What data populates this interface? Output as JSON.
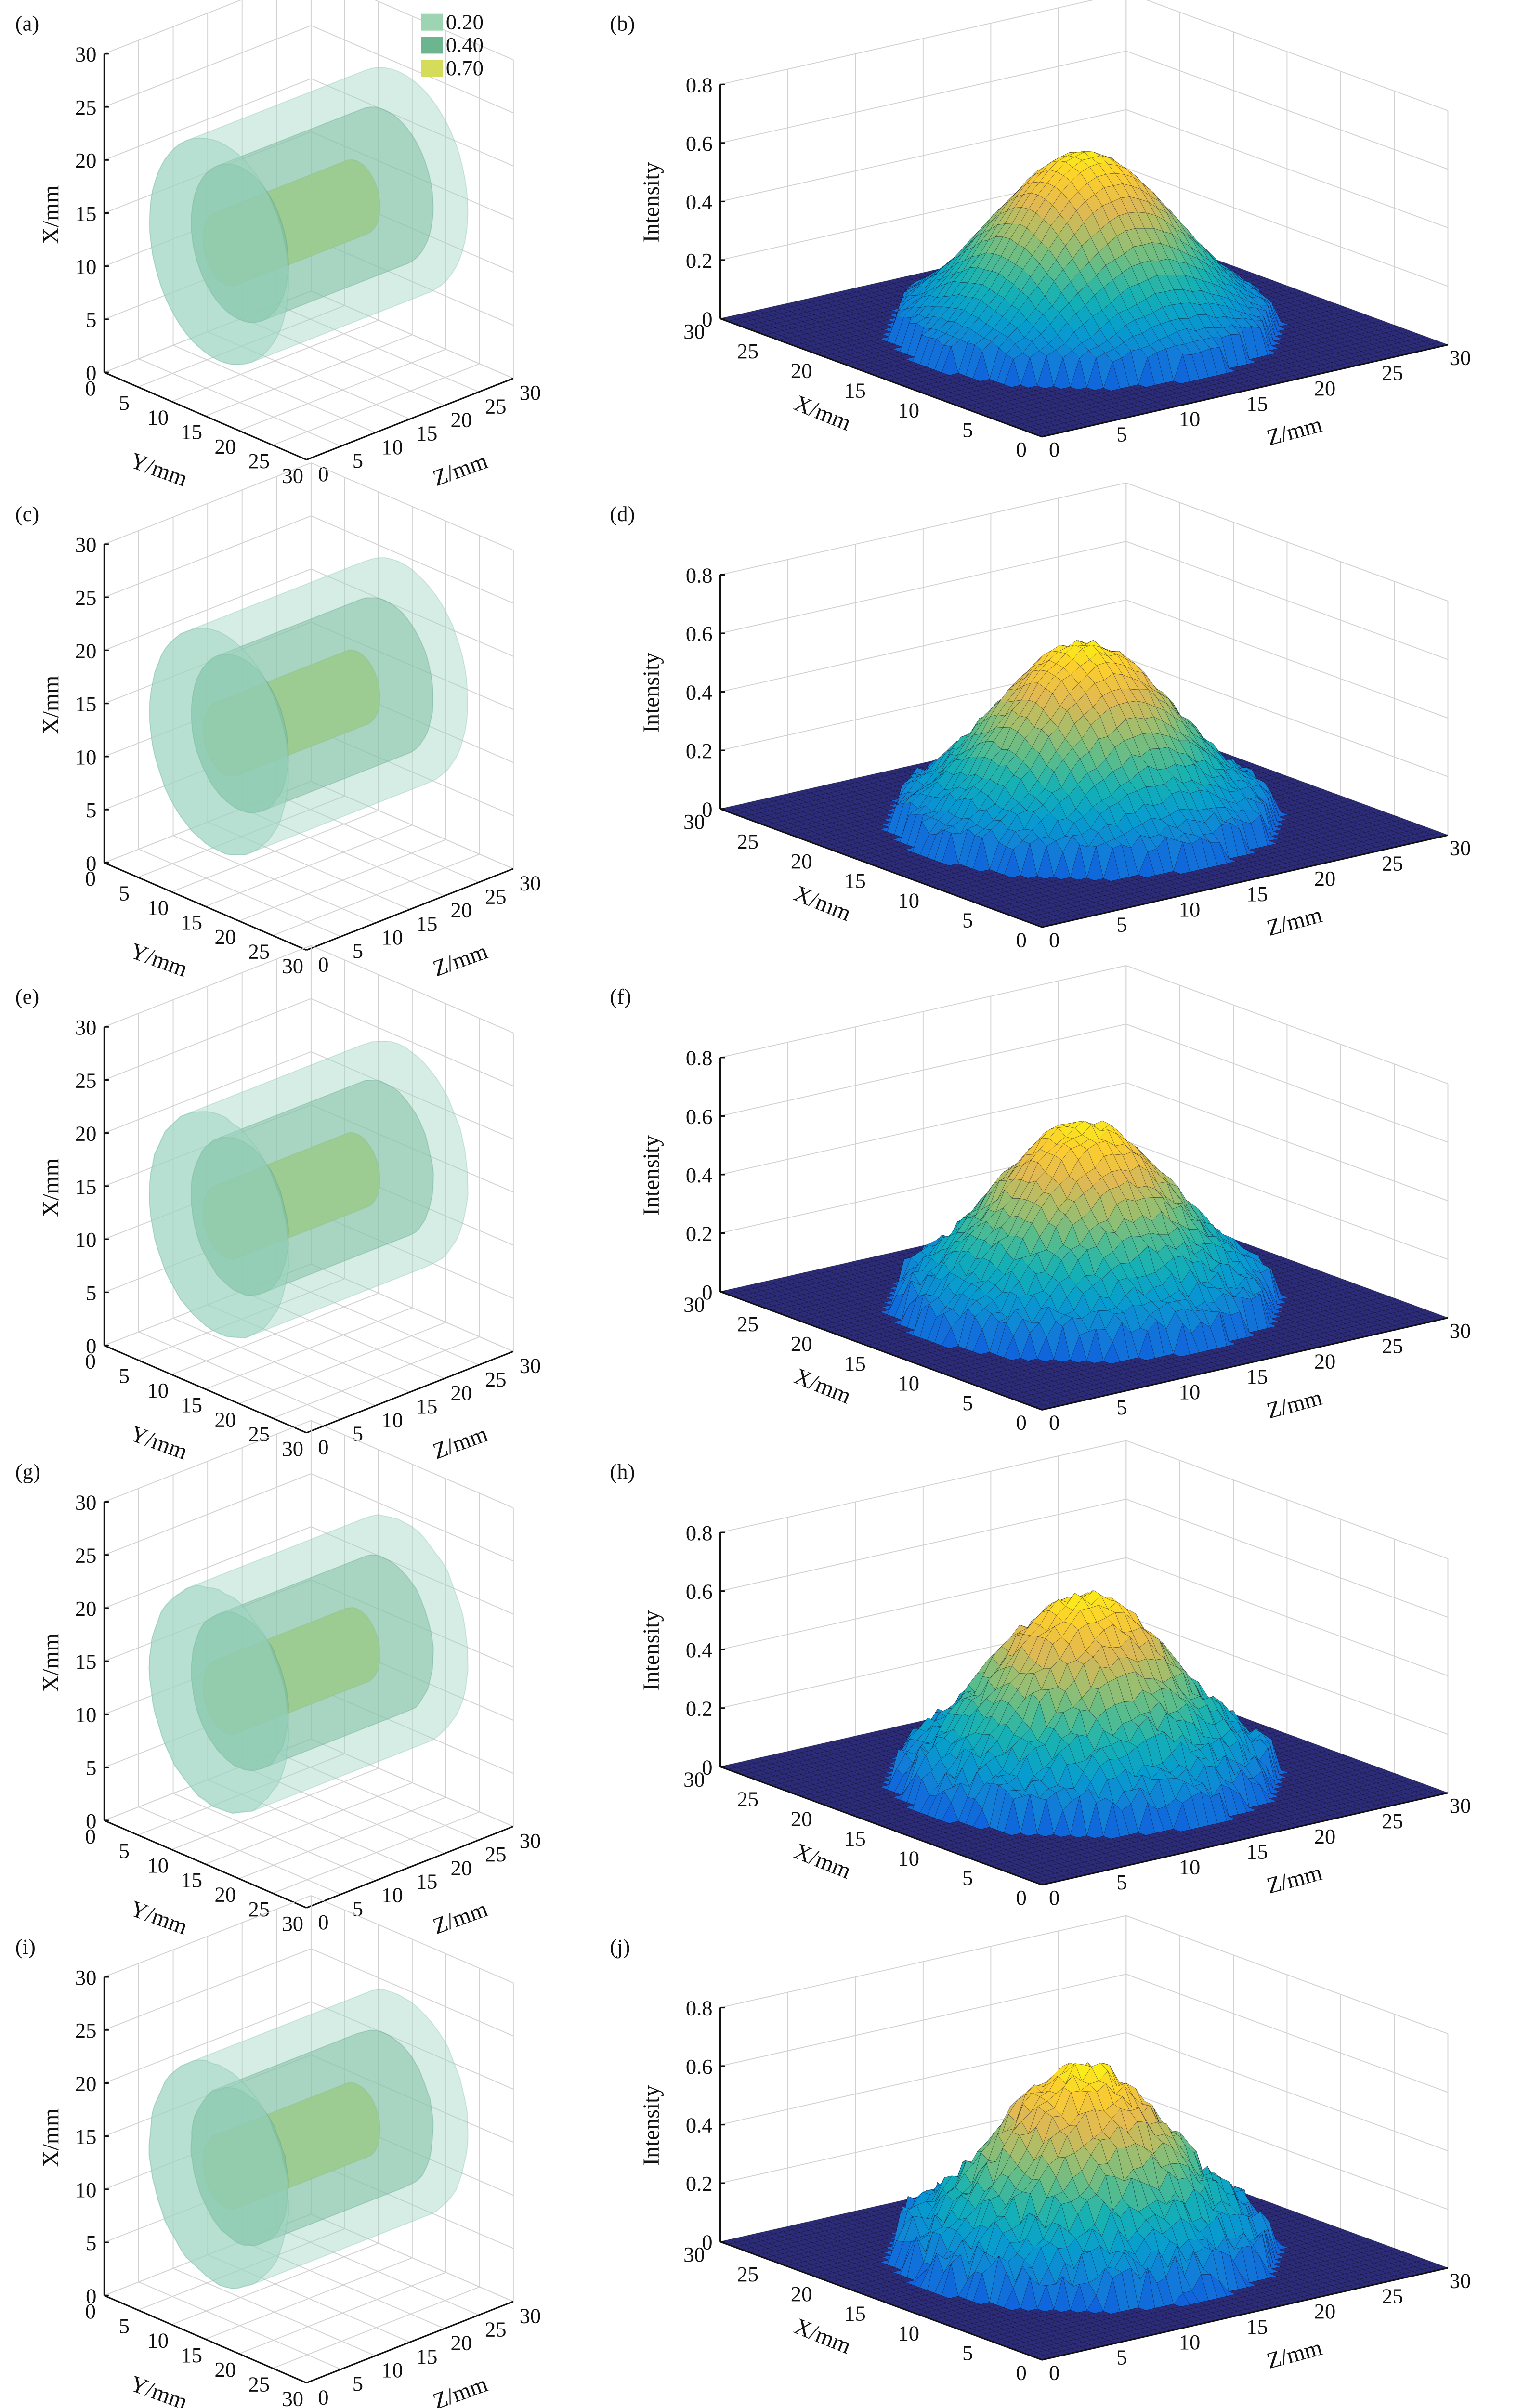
{
  "colors": {
    "iso_020": "#9dd5c0",
    "iso_040": "#5fae88",
    "iso_070": "#d6dc4c",
    "legend_020": "#9dd5b2",
    "legend_040": "#6db58f",
    "legend_070": "#d4dc5a"
  },
  "chart_data": [
    {
      "panel_label": "(a)",
      "type": "isosurface",
      "xlabel": "X/mm",
      "ylabel": "Y/mm",
      "zlabel": "Z/mm",
      "x_range": [
        0,
        30
      ],
      "y_range": [
        0,
        30
      ],
      "z_range": [
        0,
        30
      ],
      "xticks": [
        "0",
        "5",
        "10",
        "15",
        "20",
        "25",
        "30"
      ],
      "yticks": [
        "0",
        "5",
        "10",
        "15",
        "20",
        "25",
        "30"
      ],
      "zticks": [
        "0",
        "5",
        "10",
        "15",
        "20",
        "25",
        "30"
      ],
      "isovalues": [
        0.2,
        0.4,
        0.7
      ],
      "legend": [
        {
          "label": "0.20"
        },
        {
          "label": "0.40"
        },
        {
          "label": "0.70"
        }
      ],
      "roughness": 0.1
    },
    {
      "panel_label": "(b)",
      "type": "surface",
      "xlabel": "X/mm",
      "zlabel": "Z/mm",
      "vlabel": "Intensity",
      "xticks": [
        "0",
        "5",
        "10",
        "15",
        "20",
        "25",
        "30"
      ],
      "zticks": [
        "0",
        "5",
        "10",
        "15",
        "20",
        "25",
        "30"
      ],
      "vticks": [
        "0",
        "0.2",
        "0.4",
        "0.6",
        "0.8"
      ],
      "x_range": [
        0,
        30
      ],
      "z_range": [
        0,
        30
      ],
      "v_range": [
        0,
        0.8
      ],
      "peak_intensity": 0.61,
      "beam_radius_mm": 11,
      "noise": 0.01
    },
    {
      "panel_label": "(c)",
      "type": "isosurface",
      "xlabel": "X/mm",
      "ylabel": "Y/mm",
      "zlabel": "Z/mm",
      "x_range": [
        0,
        30
      ],
      "y_range": [
        0,
        30
      ],
      "z_range": [
        0,
        30
      ],
      "xticks": [
        "0",
        "5",
        "10",
        "15",
        "20",
        "25",
        "30"
      ],
      "yticks": [
        "0",
        "5",
        "10",
        "15",
        "20",
        "25",
        "30"
      ],
      "zticks": [
        "0",
        "5",
        "10",
        "15",
        "20",
        "25",
        "30"
      ],
      "isovalues": [
        0.2,
        0.4,
        0.7
      ],
      "roughness": 0.25
    },
    {
      "panel_label": "(d)",
      "type": "surface",
      "xlabel": "X/mm",
      "zlabel": "Z/mm",
      "vlabel": "Intensity",
      "xticks": [
        "0",
        "5",
        "10",
        "15",
        "20",
        "25",
        "30"
      ],
      "zticks": [
        "0",
        "5",
        "10",
        "15",
        "20",
        "25",
        "30"
      ],
      "vticks": [
        "0",
        "0.2",
        "0.4",
        "0.6",
        "0.8"
      ],
      "x_range": [
        0,
        30
      ],
      "z_range": [
        0,
        30
      ],
      "v_range": [
        0,
        0.8
      ],
      "peak_intensity": 0.61,
      "beam_radius_mm": 11,
      "noise": 0.025
    },
    {
      "panel_label": "(e)",
      "type": "isosurface",
      "xlabel": "X/mm",
      "ylabel": "Y/mm",
      "zlabel": "Z/mm",
      "x_range": [
        0,
        30
      ],
      "y_range": [
        0,
        30
      ],
      "z_range": [
        0,
        30
      ],
      "xticks": [
        "0",
        "5",
        "10",
        "15",
        "20",
        "25",
        "30"
      ],
      "yticks": [
        "0",
        "5",
        "10",
        "15",
        "20",
        "25",
        "30"
      ],
      "zticks": [
        "0",
        "5",
        "10",
        "15",
        "20",
        "25",
        "30"
      ],
      "isovalues": [
        0.2,
        0.4,
        0.7
      ],
      "roughness": 0.4
    },
    {
      "panel_label": "(f)",
      "type": "surface",
      "xlabel": "X/mm",
      "zlabel": "Z/mm",
      "vlabel": "Intensity",
      "xticks": [
        "0",
        "5",
        "10",
        "15",
        "20",
        "25",
        "30"
      ],
      "zticks": [
        "0",
        "5",
        "10",
        "15",
        "20",
        "25",
        "30"
      ],
      "vticks": [
        "0",
        "0.2",
        "0.4",
        "0.6",
        "0.8"
      ],
      "x_range": [
        0,
        30
      ],
      "z_range": [
        0,
        30
      ],
      "v_range": [
        0,
        0.8
      ],
      "peak_intensity": 0.62,
      "beam_radius_mm": 11,
      "noise": 0.04
    },
    {
      "panel_label": "(g)",
      "type": "isosurface",
      "xlabel": "X/mm",
      "ylabel": "Y/mm",
      "zlabel": "Z/mm",
      "x_range": [
        0,
        30
      ],
      "y_range": [
        0,
        30
      ],
      "z_range": [
        0,
        30
      ],
      "xticks": [
        "0",
        "5",
        "10",
        "15",
        "20",
        "25",
        "30"
      ],
      "yticks": [
        "0",
        "5",
        "10",
        "15",
        "20",
        "25",
        "30"
      ],
      "zticks": [
        "0",
        "5",
        "10",
        "15",
        "20",
        "25",
        "30"
      ],
      "isovalues": [
        0.2,
        0.4,
        0.7
      ],
      "roughness": 0.55
    },
    {
      "panel_label": "(h)",
      "type": "surface",
      "xlabel": "X/mm",
      "zlabel": "Z/mm",
      "vlabel": "Intensity",
      "xticks": [
        "0",
        "5",
        "10",
        "15",
        "20",
        "25",
        "30"
      ],
      "zticks": [
        "0",
        "5",
        "10",
        "15",
        "20",
        "25",
        "30"
      ],
      "vticks": [
        "0",
        "0.2",
        "0.4",
        "0.6",
        "0.8"
      ],
      "x_range": [
        0,
        30
      ],
      "z_range": [
        0,
        30
      ],
      "v_range": [
        0,
        0.8
      ],
      "peak_intensity": 0.63,
      "beam_radius_mm": 11,
      "noise": 0.055
    },
    {
      "panel_label": "(i)",
      "type": "isosurface",
      "xlabel": "X/mm",
      "ylabel": "Y/mm",
      "zlabel": "Z/mm",
      "x_range": [
        0,
        30
      ],
      "y_range": [
        0,
        30
      ],
      "z_range": [
        0,
        30
      ],
      "xticks": [
        "0",
        "5",
        "10",
        "15",
        "20",
        "25",
        "30"
      ],
      "yticks": [
        "0",
        "5",
        "10",
        "15",
        "20",
        "25",
        "30"
      ],
      "zticks": [
        "0",
        "5",
        "10",
        "15",
        "20",
        "25",
        "30"
      ],
      "isovalues": [
        0.2,
        0.4,
        0.7
      ],
      "roughness": 0.7
    },
    {
      "panel_label": "(j)",
      "type": "surface",
      "xlabel": "X/mm",
      "zlabel": "Z/mm",
      "vlabel": "Intensity",
      "xticks": [
        "0",
        "5",
        "10",
        "15",
        "20",
        "25",
        "30"
      ],
      "zticks": [
        "0",
        "5",
        "10",
        "15",
        "20",
        "25",
        "30"
      ],
      "vticks": [
        "0",
        "0.2",
        "0.4",
        "0.6",
        "0.8"
      ],
      "x_range": [
        0,
        30
      ],
      "z_range": [
        0,
        30
      ],
      "v_range": [
        0,
        0.8
      ],
      "peak_intensity": 0.64,
      "beam_radius_mm": 11,
      "noise": 0.07
    }
  ]
}
